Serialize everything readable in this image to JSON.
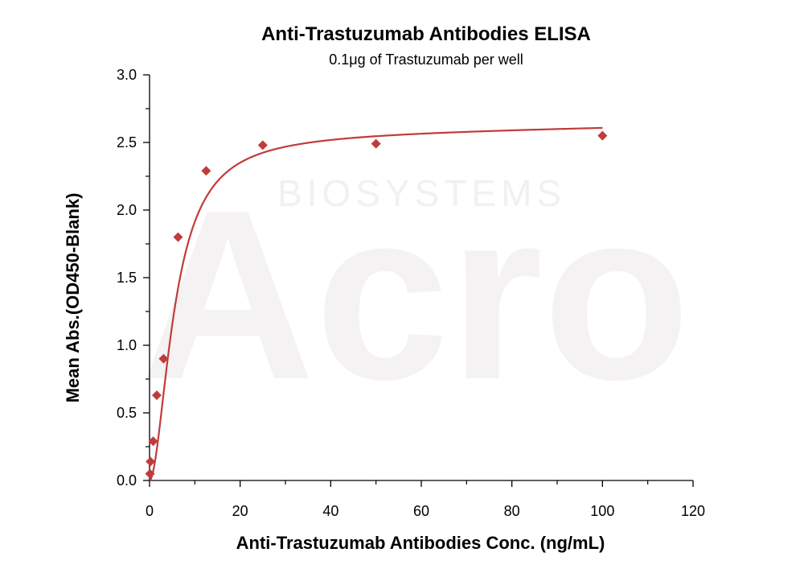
{
  "chart_data": {
    "type": "scatter",
    "title": "Anti-Trastuzumab Antibodies ELISA",
    "subtitle": "0.1μg of Trastuzumab per well",
    "xlabel": "Anti-Trastuzumab Antibodies Conc. (ng/mL)",
    "ylabel": "Mean Abs.(OD450-Blank)",
    "xlim": [
      0,
      120
    ],
    "ylim": [
      0,
      3.0
    ],
    "x_ticks": [
      "0",
      "20",
      "40",
      "60",
      "80",
      "100",
      "120"
    ],
    "y_ticks": [
      "0.0",
      "0.5",
      "1.0",
      "1.5",
      "2.0",
      "2.5",
      "3.0"
    ],
    "grid": false,
    "series": [
      {
        "x": [
          0.1,
          0.2,
          0.8,
          1.6,
          3.1,
          6.3,
          12.5,
          25,
          50,
          100
        ],
        "y": [
          0.05,
          0.14,
          0.29,
          0.63,
          0.9,
          1.8,
          2.29,
          2.48,
          2.49,
          2.55
        ],
        "color": "#c23b3b",
        "marker": "diamond"
      }
    ],
    "fit_curve": {
      "type": "sigmoidal",
      "color": "#c23b3b"
    }
  },
  "watermark": {
    "brand": "Acro",
    "sub": "BIOSYSTEMS",
    "color": "#f4f2f2"
  }
}
